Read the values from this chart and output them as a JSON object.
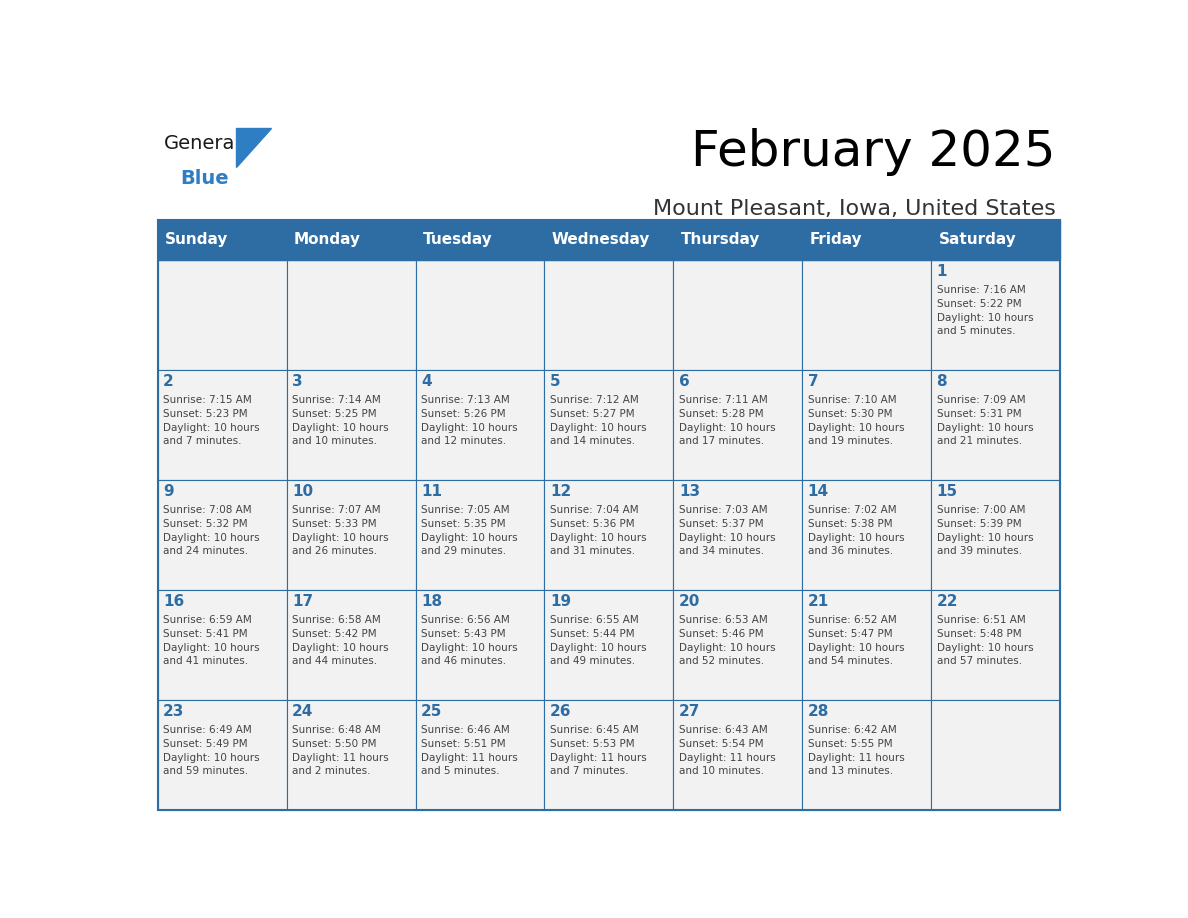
{
  "title": "February 2025",
  "subtitle": "Mount Pleasant, Iowa, United States",
  "header_bg": "#2E6DA4",
  "header_text_color": "#FFFFFF",
  "cell_bg_light": "#F2F2F2",
  "border_color": "#2E6DA4",
  "title_color": "#000000",
  "subtitle_color": "#333333",
  "day_number_color": "#2E6DA4",
  "cell_text_color": "#444444",
  "logo_general_color": "#1a1a1a",
  "logo_blue_color": "#2E7EC4",
  "day_headers": [
    "Sunday",
    "Monday",
    "Tuesday",
    "Wednesday",
    "Thursday",
    "Friday",
    "Saturday"
  ],
  "weeks": [
    [
      {
        "day": null,
        "text": ""
      },
      {
        "day": null,
        "text": ""
      },
      {
        "day": null,
        "text": ""
      },
      {
        "day": null,
        "text": ""
      },
      {
        "day": null,
        "text": ""
      },
      {
        "day": null,
        "text": ""
      },
      {
        "day": 1,
        "text": "Sunrise: 7:16 AM\nSunset: 5:22 PM\nDaylight: 10 hours\nand 5 minutes."
      }
    ],
    [
      {
        "day": 2,
        "text": "Sunrise: 7:15 AM\nSunset: 5:23 PM\nDaylight: 10 hours\nand 7 minutes."
      },
      {
        "day": 3,
        "text": "Sunrise: 7:14 AM\nSunset: 5:25 PM\nDaylight: 10 hours\nand 10 minutes."
      },
      {
        "day": 4,
        "text": "Sunrise: 7:13 AM\nSunset: 5:26 PM\nDaylight: 10 hours\nand 12 minutes."
      },
      {
        "day": 5,
        "text": "Sunrise: 7:12 AM\nSunset: 5:27 PM\nDaylight: 10 hours\nand 14 minutes."
      },
      {
        "day": 6,
        "text": "Sunrise: 7:11 AM\nSunset: 5:28 PM\nDaylight: 10 hours\nand 17 minutes."
      },
      {
        "day": 7,
        "text": "Sunrise: 7:10 AM\nSunset: 5:30 PM\nDaylight: 10 hours\nand 19 minutes."
      },
      {
        "day": 8,
        "text": "Sunrise: 7:09 AM\nSunset: 5:31 PM\nDaylight: 10 hours\nand 21 minutes."
      }
    ],
    [
      {
        "day": 9,
        "text": "Sunrise: 7:08 AM\nSunset: 5:32 PM\nDaylight: 10 hours\nand 24 minutes."
      },
      {
        "day": 10,
        "text": "Sunrise: 7:07 AM\nSunset: 5:33 PM\nDaylight: 10 hours\nand 26 minutes."
      },
      {
        "day": 11,
        "text": "Sunrise: 7:05 AM\nSunset: 5:35 PM\nDaylight: 10 hours\nand 29 minutes."
      },
      {
        "day": 12,
        "text": "Sunrise: 7:04 AM\nSunset: 5:36 PM\nDaylight: 10 hours\nand 31 minutes."
      },
      {
        "day": 13,
        "text": "Sunrise: 7:03 AM\nSunset: 5:37 PM\nDaylight: 10 hours\nand 34 minutes."
      },
      {
        "day": 14,
        "text": "Sunrise: 7:02 AM\nSunset: 5:38 PM\nDaylight: 10 hours\nand 36 minutes."
      },
      {
        "day": 15,
        "text": "Sunrise: 7:00 AM\nSunset: 5:39 PM\nDaylight: 10 hours\nand 39 minutes."
      }
    ],
    [
      {
        "day": 16,
        "text": "Sunrise: 6:59 AM\nSunset: 5:41 PM\nDaylight: 10 hours\nand 41 minutes."
      },
      {
        "day": 17,
        "text": "Sunrise: 6:58 AM\nSunset: 5:42 PM\nDaylight: 10 hours\nand 44 minutes."
      },
      {
        "day": 18,
        "text": "Sunrise: 6:56 AM\nSunset: 5:43 PM\nDaylight: 10 hours\nand 46 minutes."
      },
      {
        "day": 19,
        "text": "Sunrise: 6:55 AM\nSunset: 5:44 PM\nDaylight: 10 hours\nand 49 minutes."
      },
      {
        "day": 20,
        "text": "Sunrise: 6:53 AM\nSunset: 5:46 PM\nDaylight: 10 hours\nand 52 minutes."
      },
      {
        "day": 21,
        "text": "Sunrise: 6:52 AM\nSunset: 5:47 PM\nDaylight: 10 hours\nand 54 minutes."
      },
      {
        "day": 22,
        "text": "Sunrise: 6:51 AM\nSunset: 5:48 PM\nDaylight: 10 hours\nand 57 minutes."
      }
    ],
    [
      {
        "day": 23,
        "text": "Sunrise: 6:49 AM\nSunset: 5:49 PM\nDaylight: 10 hours\nand 59 minutes."
      },
      {
        "day": 24,
        "text": "Sunrise: 6:48 AM\nSunset: 5:50 PM\nDaylight: 11 hours\nand 2 minutes."
      },
      {
        "day": 25,
        "text": "Sunrise: 6:46 AM\nSunset: 5:51 PM\nDaylight: 11 hours\nand 5 minutes."
      },
      {
        "day": 26,
        "text": "Sunrise: 6:45 AM\nSunset: 5:53 PM\nDaylight: 11 hours\nand 7 minutes."
      },
      {
        "day": 27,
        "text": "Sunrise: 6:43 AM\nSunset: 5:54 PM\nDaylight: 11 hours\nand 10 minutes."
      },
      {
        "day": 28,
        "text": "Sunrise: 6:42 AM\nSunset: 5:55 PM\nDaylight: 11 hours\nand 13 minutes."
      },
      {
        "day": null,
        "text": ""
      }
    ]
  ]
}
